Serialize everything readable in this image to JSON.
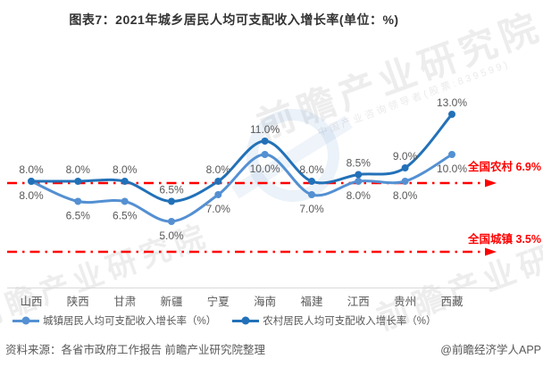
{
  "title": "图表7：2021年城乡居民人均可支配收入增长率(单位：%)",
  "chart_data": {
    "type": "line",
    "title": "图表7：2021年城乡居民人均可支配收入增长率(单位：%)",
    "unit": "%",
    "categories": [
      "山西",
      "陕西",
      "甘肃",
      "新疆",
      "宁夏",
      "海南",
      "福建",
      "江西",
      "贵州",
      "西藏"
    ],
    "series": [
      {
        "name": "城镇居民人均可支配收入增长率（%）",
        "color": "#5490D2",
        "values": [
          8.0,
          6.5,
          6.5,
          5.0,
          7.0,
          10.0,
          7.0,
          8.0,
          8.0,
          10.0
        ],
        "label_position": "below"
      },
      {
        "name": "农村居民人均可支配收入增长率（%）",
        "color": "#2271B8",
        "values": [
          8.0,
          8.0,
          8.0,
          6.5,
          8.0,
          11.0,
          8.0,
          8.5,
          9.0,
          13.0
        ],
        "label_position": "above"
      }
    ],
    "reference_lines": [
      {
        "label": "全国农村 6.9%",
        "value": 6.9,
        "color": "#FF0000"
      },
      {
        "label": "全国城镇 3.5%",
        "value": 3.5,
        "color": "#FF0000"
      }
    ],
    "value_label_format": "one_decimal_percent",
    "legend_position": "bottom",
    "grid": "off"
  },
  "footer": {
    "source": "资料来源：各省市政府工作报告 前瞻产业研究院整理",
    "credit": "@前瞻经济学人APP"
  },
  "watermark": {
    "text": "前瞻产业研究院",
    "subtext": "中国产业咨询领导者(股票:839599)"
  }
}
